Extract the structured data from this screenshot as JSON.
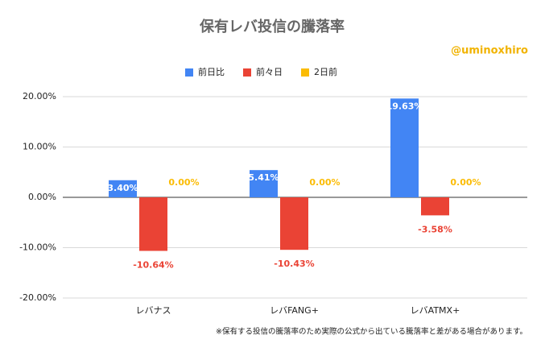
{
  "chart_data": {
    "type": "bar",
    "title": "保有レバ投信の騰落率",
    "annotations": [
      "@uminoxhiro",
      "※保有する投信の騰落率のため実際の公式から出ている騰落率と差がある場合があります。"
    ],
    "categories": [
      "レバナス",
      "レバFANG+",
      "レバATMX+"
    ],
    "series": [
      {
        "name": "前日比",
        "color": "#4285f4",
        "values": [
          3.4,
          5.41,
          19.63
        ],
        "value_labels": [
          "3.40%",
          "5.41%",
          "19.63%"
        ]
      },
      {
        "name": "前々日",
        "color": "#ea4335",
        "values": [
          -10.64,
          -10.43,
          -3.58
        ],
        "value_labels": [
          "-10.64%",
          "-10.43%",
          "-3.58%"
        ]
      },
      {
        "name": "2日前",
        "color": "#fbbc04",
        "values": [
          0,
          0,
          0
        ],
        "value_labels": [
          "0.00%",
          "0.00%",
          "0.00%"
        ]
      }
    ],
    "ylim": [
      -20,
      20
    ],
    "yticks": [
      {
        "value": -20,
        "label": "-20.00%"
      },
      {
        "value": -10,
        "label": "-10.00%"
      },
      {
        "value": 0,
        "label": "0.00%"
      },
      {
        "value": 10,
        "label": "10.00%"
      },
      {
        "value": 20,
        "label": "20.00%"
      }
    ],
    "grid": true,
    "legend": "top"
  }
}
